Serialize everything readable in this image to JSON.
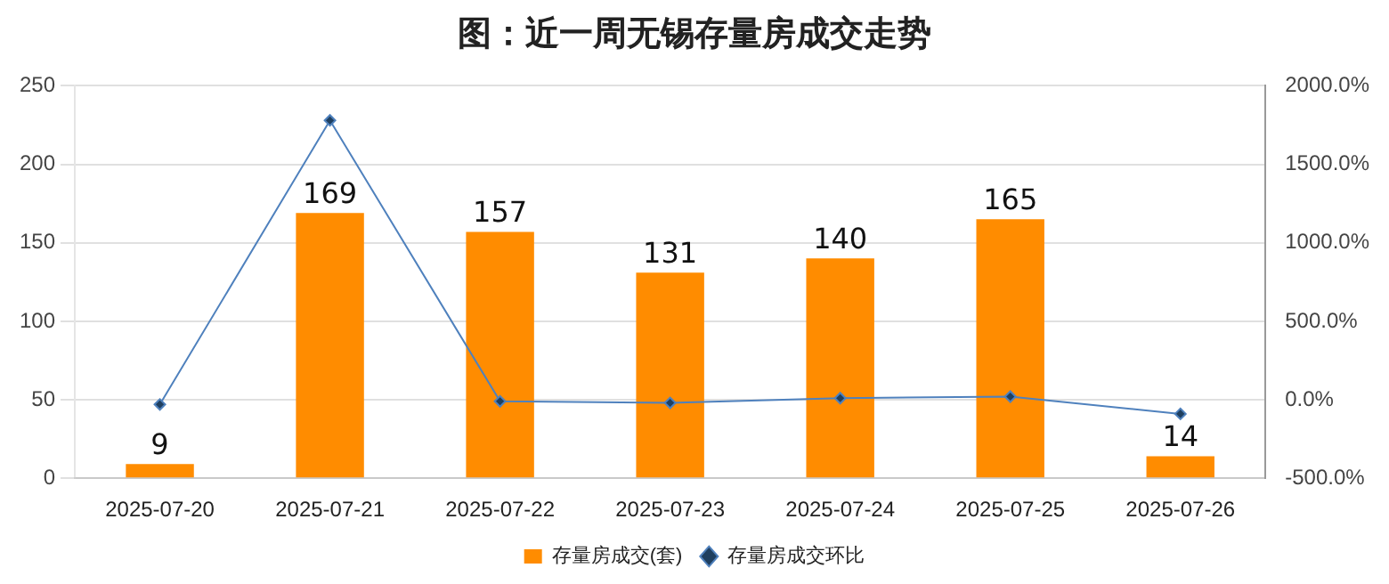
{
  "chart_data": {
    "type": "bar",
    "title": "图：近一周无锡存量房成交走势",
    "categories": [
      "2025-07-20",
      "2025-07-21",
      "2025-07-22",
      "2025-07-23",
      "2025-07-24",
      "2025-07-25",
      "2025-07-26"
    ],
    "series": [
      {
        "name": "存量房成交(套)",
        "color": "#ff8c00",
        "values": [
          9,
          169,
          157,
          131,
          140,
          165,
          14
        ],
        "value_labels": [
          "9",
          "169",
          "157",
          "131",
          "140",
          "165",
          "14"
        ]
      },
      {
        "name": "存量房成交环比",
        "type": "line",
        "axis": "y2",
        "color": "#4f81bd",
        "marker": "diamond",
        "values": [
          -30,
          1780,
          -10,
          -20,
          10,
          20,
          -90
        ]
      }
    ],
    "ylim": [
      0,
      250
    ],
    "yticks": [
      0,
      50,
      100,
      150,
      200,
      250
    ],
    "y2lim": [
      -500,
      2000
    ],
    "y2ticks": [
      {
        "value": -500,
        "label": "-500.0%"
      },
      {
        "value": 0,
        "label": "0.0%"
      },
      {
        "value": 500,
        "label": "500.0%"
      },
      {
        "value": 1000,
        "label": "1000.0%"
      },
      {
        "value": 1500,
        "label": "1500.0%"
      },
      {
        "value": 2000,
        "label": "2000.0%"
      }
    ],
    "grid": "y",
    "legend": "bottom"
  }
}
